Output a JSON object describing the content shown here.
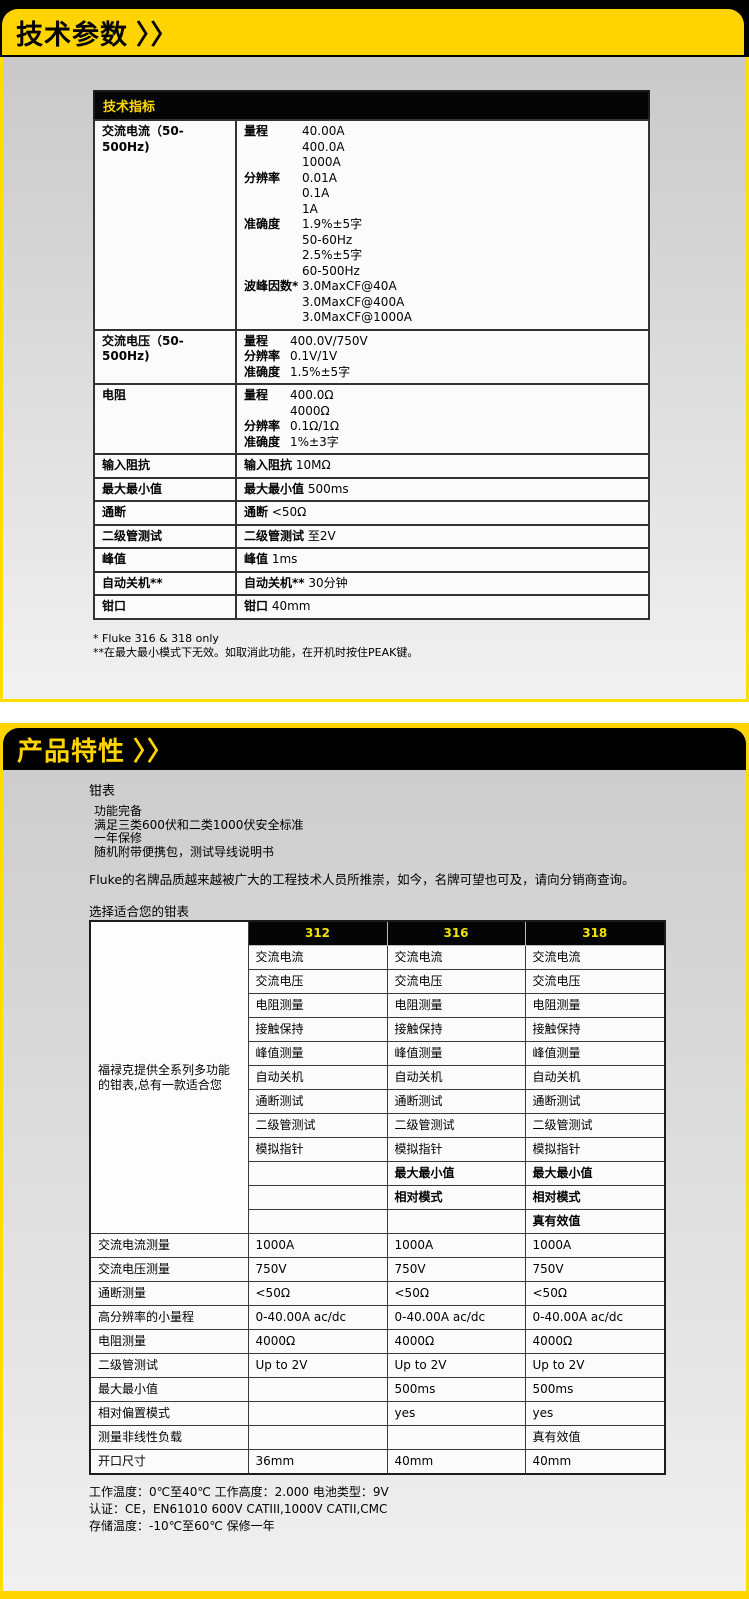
{
  "sections": [
    {
      "title": "技术参数",
      "chevrons": "〉〉"
    },
    {
      "title": "产品特性",
      "chevrons": "〉〉"
    }
  ],
  "colors": {
    "brand_yellow": "#ffd400",
    "border_yellow": "#ffde00",
    "header_black": "#000000",
    "model_header_text": "#f0e300",
    "spec_header_text": "#ffd800"
  },
  "spec_table": {
    "header": "技术指标",
    "rows": [
      {
        "name": "交流电流（50-500Hz)",
        "groups": [
          {
            "label": "量程",
            "values": [
              "40.00A",
              "400.0A",
              "1000A"
            ]
          },
          {
            "label": "分辨率",
            "values": [
              "0.01A",
              "0.1A",
              "1A"
            ]
          },
          {
            "label": "准确度",
            "values": [
              "1.9%±5字",
              "50-60Hz",
              "2.5%±5字",
              "60-500Hz"
            ]
          },
          {
            "label": "波峰因数*",
            "values": [
              "3.0MaxCF@40A",
              "3.0MaxCF@400A",
              "3.0MaxCF@1000A"
            ]
          }
        ]
      },
      {
        "name": "交流电压（50-500Hz)",
        "groups": [
          {
            "label": "量程",
            "values": [
              "400.0V/750V"
            ]
          },
          {
            "label": "分辨率",
            "values": [
              "0.1V/1V"
            ]
          },
          {
            "label": "准确度",
            "values": [
              "1.5%±5字"
            ]
          }
        ]
      },
      {
        "name": "电阻",
        "groups": [
          {
            "label": "量程",
            "values": [
              "400.0Ω",
              "4000Ω"
            ]
          },
          {
            "label": "分辨率",
            "values": [
              "0.1Ω/1Ω"
            ]
          },
          {
            "label": "准确度",
            "values": [
              "1%±3字"
            ]
          }
        ]
      },
      {
        "name": "输入阻抗",
        "label": "输入阻抗",
        "value": "10MΩ"
      },
      {
        "name": "最大最小值",
        "label": "最大最小值",
        "value": "500ms"
      },
      {
        "name": "通断",
        "label": "通断",
        "value": "<50Ω"
      },
      {
        "name": "二级管测试",
        "label": "二级管测试",
        "value": "至2V"
      },
      {
        "name": "峰值",
        "label": "峰值",
        "value": "1ms"
      },
      {
        "name": "自动关机**",
        "label": "自动关机**",
        "value": "30分钟"
      },
      {
        "name": "钳口",
        "label": "钳口",
        "value": "40mm"
      }
    ],
    "footnotes": [
      "* Fluke 316 & 318 only",
      "**在最大最小模式下无效。如取消此功能，在开机时按住PEAK键。"
    ]
  },
  "features": {
    "product_name": "钳表",
    "bullets": [
      "功能完备",
      "满足三类600伏和二类1000伏安全标准",
      "一年保修",
      "随机附带便携包，测试导线说明书"
    ],
    "promo": "Fluke的名牌品质越来越被广大的工程技术人员所推崇，如今，名牌可望也可及，请向分销商查询。",
    "table_caption": "选择适合您的钳表"
  },
  "comparison_table": {
    "models": [
      "312",
      "316",
      "318"
    ],
    "left_note": "福禄克提供全系列多功能的钳表,总有一款适合您",
    "feature_rows": [
      {
        "cells": [
          "交流电流",
          "交流电流",
          "交流电流"
        ],
        "bold": false
      },
      {
        "cells": [
          "交流电压",
          "交流电压",
          "交流电压"
        ],
        "bold": false
      },
      {
        "cells": [
          "电阻测量",
          "电阻测量",
          "电阻测量"
        ],
        "bold": false
      },
      {
        "cells": [
          "接触保持",
          "接触保持",
          "接触保持"
        ],
        "bold": false
      },
      {
        "cells": [
          "峰值测量",
          "峰值测量",
          "峰值测量"
        ],
        "bold": false
      },
      {
        "cells": [
          "自动关机",
          "自动关机",
          "自动关机"
        ],
        "bold": false
      },
      {
        "cells": [
          "通断测试",
          "通断测试",
          "通断测试"
        ],
        "bold": false
      },
      {
        "cells": [
          "二级管测试",
          "二级管测试",
          "二级管测试"
        ],
        "bold": false
      },
      {
        "cells": [
          "模拟指针",
          "模拟指针",
          "模拟指针"
        ],
        "bold": false
      },
      {
        "cells": [
          "",
          "最大最小值",
          "最大最小值"
        ],
        "bold": true
      },
      {
        "cells": [
          "",
          "相对模式",
          "相对模式"
        ],
        "bold": true
      },
      {
        "cells": [
          "",
          "",
          "真有效值"
        ],
        "bold": true
      }
    ],
    "spec_rows": [
      {
        "label": "交流电流测量",
        "values": [
          "1000A",
          "1000A",
          "1000A"
        ]
      },
      {
        "label": "交流电压测量",
        "values": [
          "750V",
          "750V",
          "750V"
        ]
      },
      {
        "label": "通断测量",
        "values": [
          "<50Ω",
          "<50Ω",
          "<50Ω"
        ]
      },
      {
        "label": "高分辨率的小量程",
        "values": [
          "0-40.00A ac/dc",
          "0-40.00A ac/dc",
          "0-40.00A ac/dc"
        ]
      },
      {
        "label": "电阻测量",
        "values": [
          "4000Ω",
          "4000Ω",
          "4000Ω"
        ]
      },
      {
        "label": "二级管测试",
        "values": [
          "Up to 2V",
          "Up to 2V",
          "Up to 2V"
        ]
      },
      {
        "label": "最大最小值",
        "values": [
          "",
          "500ms",
          "500ms"
        ]
      },
      {
        "label": "相对偏置模式",
        "values": [
          "",
          "yes",
          "yes"
        ]
      },
      {
        "label": "测量非线性负载",
        "values": [
          "",
          "",
          "真有效值"
        ]
      },
      {
        "label": "开口尺寸",
        "values": [
          "36mm",
          "40mm",
          "40mm"
        ]
      }
    ]
  },
  "footer_lines": [
    "工作温度：0℃至40℃ 工作高度：2.000 电池类型：9V",
    "认证：CE，EN61010 600V CATIII,1000V CATII,CMC",
    "存储温度：-10℃至60℃ 保修一年"
  ]
}
